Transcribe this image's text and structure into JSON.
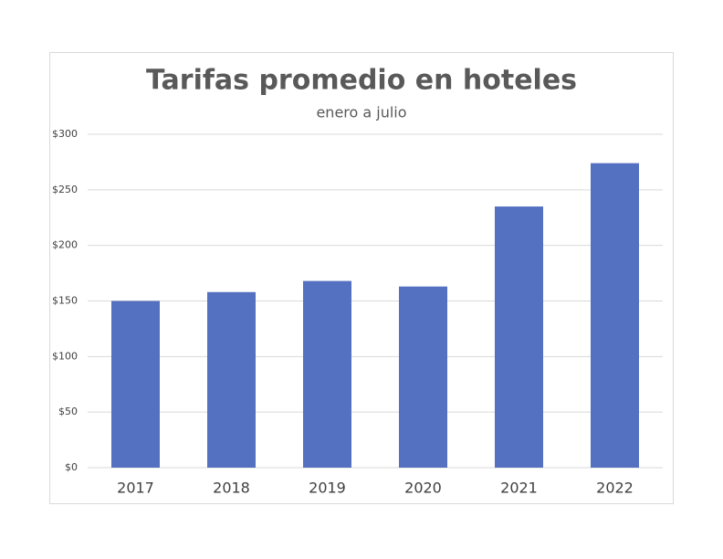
{
  "chart_data": {
    "type": "bar",
    "title": "Tarifas promedio en hoteles",
    "subtitle": "enero a julio",
    "categories": [
      "2017",
      "2018",
      "2019",
      "2020",
      "2021",
      "2022"
    ],
    "values": [
      150,
      158,
      168,
      163,
      235,
      274
    ],
    "color": "#5470c0",
    "ylim": [
      0,
      300
    ],
    "yticks": [
      {
        "value": 0,
        "label": "$0"
      },
      {
        "value": 50,
        "label": "$50"
      },
      {
        "value": 100,
        "label": "$100"
      },
      {
        "value": 150,
        "label": "$150"
      },
      {
        "value": 200,
        "label": "$200"
      },
      {
        "value": 250,
        "label": "$250"
      },
      {
        "value": 300,
        "label": "$300"
      }
    ],
    "grid": true
  }
}
